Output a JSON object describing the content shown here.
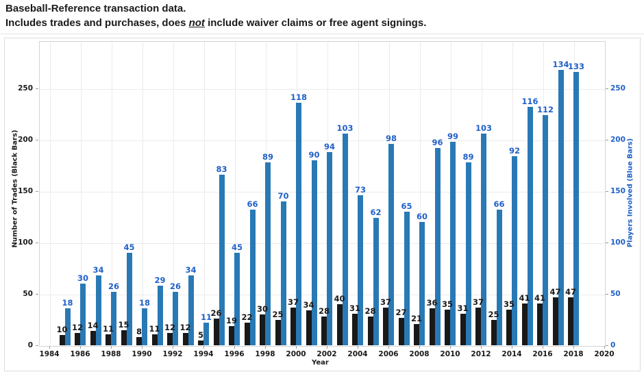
{
  "header": {
    "title": "Baseball-Reference transaction data.",
    "subtitle": {
      "prefix": "Includes trades and purchases, does ",
      "emphasis": "not",
      "suffix": " include waiver claims or free agent signings."
    }
  },
  "colors": {
    "trades_bar": "#191919",
    "players_bar": "#2979b5",
    "blue_text": "#2060c8",
    "black_text": "#1a1a1a",
    "gridline": "#ebebeb"
  },
  "chart_data": {
    "type": "bar",
    "title": "Baseball-Reference transaction data.",
    "xlabel": "Year",
    "ylabel_left": "Number of Trades (Black Bars)",
    "ylabel_right": "Players Involved (Blue Bars)",
    "x_ticks": [
      1984,
      1986,
      1988,
      1990,
      1992,
      1994,
      1996,
      1998,
      2000,
      2002,
      2004,
      2006,
      2008,
      2010,
      2012,
      2014,
      2016,
      2018,
      2020
    ],
    "y_ticks_left": [
      0,
      50,
      100,
      150,
      200,
      250
    ],
    "y_ticks_right": [
      0,
      50,
      100,
      150,
      200,
      250
    ],
    "x_range": [
      1984,
      2020
    ],
    "ylim_left": [
      0,
      296
    ],
    "grid": true,
    "legend": "none",
    "players_bar_pixel_scale": 2,
    "categories": [
      1985,
      1986,
      1987,
      1988,
      1989,
      1990,
      1991,
      1992,
      1993,
      1994,
      1995,
      1996,
      1997,
      1998,
      1999,
      2000,
      2001,
      2002,
      2003,
      2004,
      2005,
      2006,
      2007,
      2008,
      2009,
      2010,
      2011,
      2012,
      2013,
      2014,
      2015,
      2016,
      2017,
      2018
    ],
    "series": [
      {
        "name": "Number of Trades",
        "color": "#191919",
        "values": [
          10,
          12,
          14,
          11,
          15,
          8,
          11,
          12,
          12,
          5,
          26,
          19,
          22,
          30,
          25,
          37,
          34,
          28,
          40,
          31,
          28,
          37,
          27,
          21,
          36,
          35,
          31,
          37,
          25,
          35,
          41,
          41,
          47,
          47
        ]
      },
      {
        "name": "Players Involved",
        "color": "#2979b5",
        "values": [
          18,
          30,
          34,
          26,
          45,
          18,
          29,
          26,
          34,
          11,
          83,
          45,
          66,
          89,
          70,
          118,
          90,
          94,
          103,
          73,
          62,
          98,
          65,
          60,
          96,
          99,
          89,
          103,
          66,
          92,
          116,
          112,
          134,
          133
        ]
      }
    ]
  }
}
